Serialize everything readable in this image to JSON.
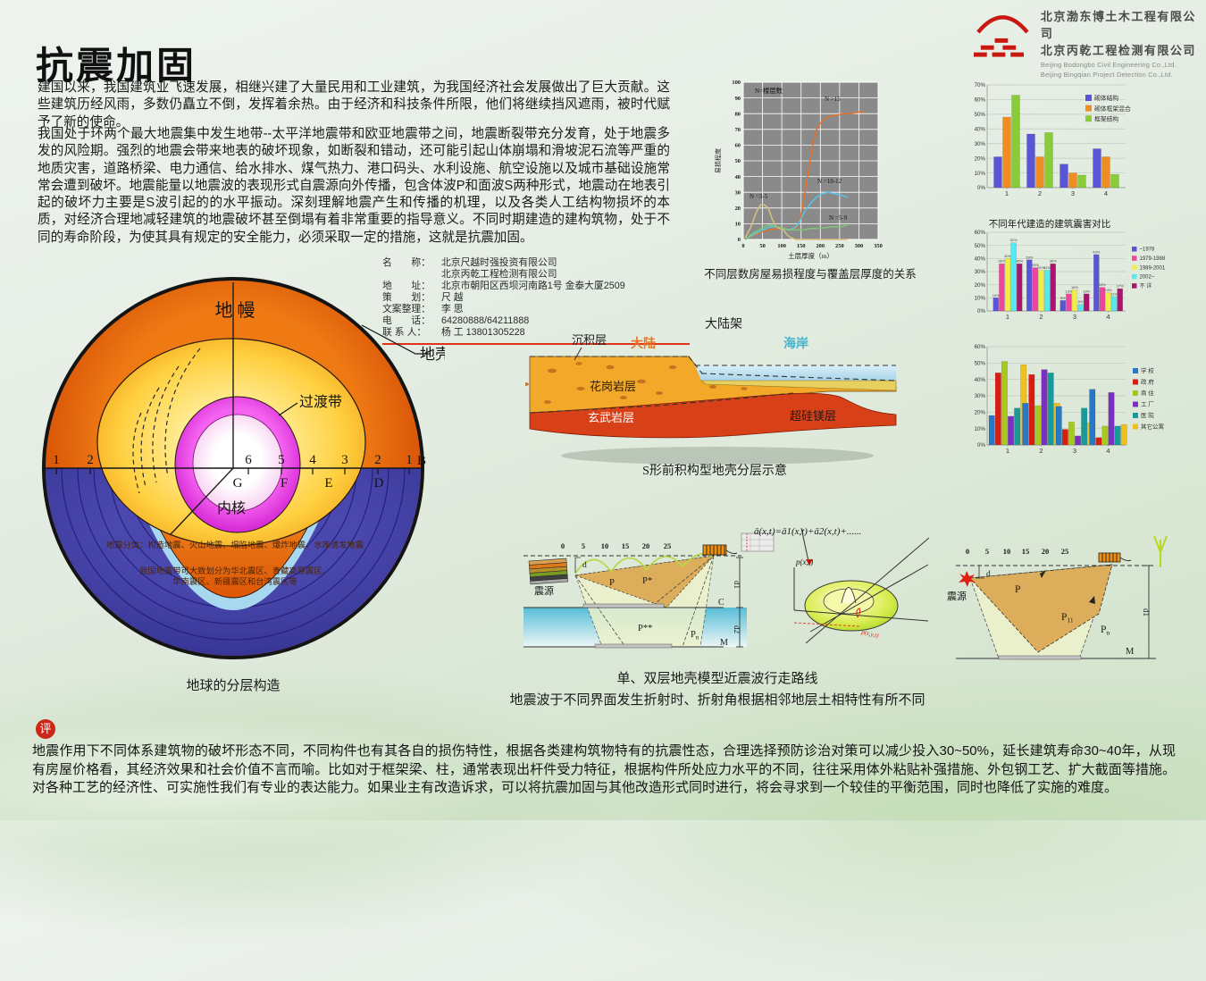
{
  "page": {
    "title": "抗震加固",
    "para1": "建国以来，我国建筑业飞速发展，相继兴建了大量民用和工业建筑，为我国经济社会发展做出了巨大贡献。这些建筑历经风雨，多数仍矗立不倒，发挥着余热。由于经济和科技条件所限，他们将继续挡风遮雨，被时代赋予了新的使命。",
    "para2": "我国处于环两个最大地震集中发生地带--太平洋地震带和欧亚地震带之间，地震断裂带充分发育，处于地震多发的风险期。强烈的地震会带来地表的破坏现象，如断裂和错动，还可能引起山体崩塌和滑坡泥石流等严重的地质灾害，道路桥梁、电力通信、给水排水、煤气热力、港口码头、水利设施、航空设施以及城市基础设施常常会遭到破坏。地震能量以地震波的表现形式自震源向外传播，包含体波P和面波S两种形式，地震动在地表引起的破坏力主要是S波引起的的水平振动。深刻理解地震产生和传播的机理，以及各类人工结构物损坏的本质，对经济合理地减轻建筑的地震破坏甚至倒塌有着非常重要的指导意义。不同时期建造的建构筑物，处于不同的寿命阶段，为使其具有规定的安全能力，必须采取一定的措施，这就是抗震加固。",
    "review_stamp": "评",
    "review_para": "地震作用下不同体系建筑物的破坏形态不同，不同构件也有其各自的损伤特性，根据各类建构筑物特有的抗震性态，合理选择预防诊治对策可以减少投入30~50%，延长建筑寿命30~40年，从现有房屋价格看，其经济效果和社会价值不言而喻。比如对于框架梁、柱，通常表现出杆件受力特征，根据构件所处应力水平的不同，往往采用体外粘贴补强措施、外包钢工艺、扩大截面等措施。对各种工艺的经济性、可实施性我们有专业的表达能力。如果业主有改造诉求，可以将抗震加固与其他改造形式同时进行，将会寻求到一个较佳的平衡范围，同时也降低了实施的难度。"
  },
  "logos": {
    "cn1": "北京渤东博土木工程有限公司",
    "cn2": "北京丙乾工程检测有限公司",
    "en1": "Beijing Bodongbo Civil Engineering Co.,Ltd.",
    "en2": "Beijing Bingqian Project Detection Co.,Ltd.",
    "brand_color": "#c81810"
  },
  "info_block": {
    "rows": [
      {
        "label": "名　　称：",
        "value": "北京尺越时强投资有限公司"
      },
      {
        "label": "",
        "value": "北京丙乾工程检测有限公司"
      },
      {
        "label": "地　　址：",
        "value": "北京市朝阳区西坝河南路1号 金泰大厦2509"
      },
      {
        "label": "策　　划：",
        "value": "尺 越"
      },
      {
        "label": "文案整理：",
        "value": "李 思"
      },
      {
        "label": "电　　话：",
        "value": "64280888/64211888"
      },
      {
        "label": "联 系 人：",
        "value": "杨 工 13801305228"
      }
    ]
  },
  "earth": {
    "mantle": "地 幔",
    "crust": "地壳",
    "transition": "过渡带",
    "core": "内核",
    "numbers": [
      "1",
      "2",
      "6",
      "5",
      "4",
      "3",
      "2",
      "1",
      "B"
    ],
    "letters": [
      "G",
      "F",
      "E",
      "D"
    ],
    "note1": "地震分类：构造地震、火山地震、塌陷地震、爆炸地震、水库诱发地震",
    "note2": "我国地震带可大致划分为华北震区、青藏高原震区、",
    "note3": "华南震区、新疆震区和台湾震区等",
    "caption": "地球的分层构造"
  },
  "shelf": {
    "shelf_label": "大陆架",
    "sediment": "沉积层",
    "continent": "大陆",
    "coast": "海岸",
    "granite": "花岗岩层",
    "basalt": "玄武岩层",
    "sima": "超硅镁层",
    "caption": "S形前积构型地壳分层示意",
    "continent_color": "#e87828",
    "coast_color": "#48b4cc"
  },
  "waves": {
    "scale": [
      "0",
      "5",
      "10",
      "15",
      "20",
      "25"
    ],
    "formula": "ā(x,t)=ā1(x,t)+ā2(x,t)+......",
    "source": "震源",
    "left": {
      "d": "d",
      "p": "P",
      "p_star": "P*",
      "p_star2": "P**",
      "pn_base": "P",
      "pn_sub": "n",
      "c": "C",
      "m": "M",
      "d1": "d1",
      "d2": "d2"
    },
    "surface": {
      "axis": "p(x,t)",
      "point": "p(x,y,t)"
    },
    "right": {
      "d": "d",
      "p": "P",
      "p11_base": "P",
      "p11_sub": "11",
      "pn_base": "P",
      "pn_sub": "n",
      "m": "M",
      "d1": "d1"
    },
    "caption1": "单、双层地壳模型近震波行走路线",
    "caption2": "地震波于不同界面发生折射时、折射角根据相邻地层土相特性有所不同"
  },
  "chart_data": [
    {
      "type": "line",
      "title": "不同层数房屋易损程度与覆盖层厚度的关系",
      "xlabel": "土层厚度（m）",
      "ylabel": "易损程度",
      "annotation": "N=楼层数",
      "xlim": [
        0,
        350
      ],
      "ylim": [
        0,
        100
      ],
      "x_ticks": [
        0,
        50,
        100,
        150,
        200,
        250,
        300,
        350
      ],
      "y_ticks": [
        0,
        10,
        20,
        30,
        40,
        50,
        60,
        70,
        80,
        90,
        100
      ],
      "plot_bg": "#8a8a8a",
      "grid_color": "#ffffff",
      "series": [
        {
          "name": "N >15",
          "color": "#e4722a",
          "points": [
            [
              5,
              0
            ],
            [
              30,
              3
            ],
            [
              50,
              5
            ],
            [
              70,
              6
            ],
            [
              90,
              7
            ],
            [
              110,
              6
            ],
            [
              130,
              6
            ],
            [
              140,
              8
            ],
            [
              150,
              15
            ],
            [
              160,
              30
            ],
            [
              170,
              45
            ],
            [
              180,
              60
            ],
            [
              190,
              70
            ],
            [
              200,
              74
            ],
            [
              220,
              78
            ],
            [
              240,
              79
            ],
            [
              260,
              80
            ],
            [
              280,
              80
            ],
            [
              300,
              81
            ],
            [
              315,
              81
            ]
          ]
        },
        {
          "name": "N =10-12",
          "color": "#58c6e6",
          "points": [
            [
              5,
              0
            ],
            [
              25,
              3
            ],
            [
              50,
              6
            ],
            [
              70,
              8
            ],
            [
              85,
              8
            ],
            [
              100,
              7
            ],
            [
              115,
              6
            ],
            [
              130,
              7
            ],
            [
              140,
              9
            ],
            [
              150,
              13
            ],
            [
              160,
              18
            ],
            [
              175,
              23
            ],
            [
              190,
              27
            ],
            [
              205,
              29
            ],
            [
              220,
              30
            ],
            [
              240,
              29
            ],
            [
              255,
              28
            ],
            [
              270,
              27
            ]
          ]
        },
        {
          "name": "N =3-5",
          "color": "#d8c080",
          "points": [
            [
              5,
              1
            ],
            [
              20,
              8
            ],
            [
              35,
              18
            ],
            [
              45,
              22
            ],
            [
              55,
              22
            ],
            [
              65,
              20
            ],
            [
              75,
              13
            ],
            [
              85,
              8
            ],
            [
              95,
              7
            ],
            [
              105,
              6
            ],
            [
              110,
              4
            ],
            [
              118,
              2
            ],
            [
              125,
              1
            ],
            [
              135,
              0
            ],
            [
              200,
              0
            ],
            [
              270,
              0
            ]
          ]
        },
        {
          "name": "N =5-9",
          "color": "#7dc677",
          "points": [
            [
              5,
              0
            ],
            [
              20,
              3
            ],
            [
              40,
              6
            ],
            [
              55,
              8
            ],
            [
              65,
              9
            ],
            [
              75,
              9
            ],
            [
              90,
              8
            ],
            [
              105,
              7
            ],
            [
              120,
              6
            ],
            [
              140,
              6
            ],
            [
              155,
              6
            ],
            [
              175,
              7
            ],
            [
              200,
              7
            ],
            [
              225,
              8
            ],
            [
              250,
              8
            ],
            [
              270,
              9
            ]
          ]
        }
      ]
    },
    {
      "type": "bar",
      "title": "",
      "categories": [
        "1",
        "2",
        "3",
        "4"
      ],
      "ylim": [
        0,
        70
      ],
      "y_ticks": [
        "0%",
        "10%",
        "20%",
        "30%",
        "40%",
        "50%",
        "60%",
        "70%"
      ],
      "show_value_labels": false,
      "series": [
        {
          "name": "砌体结构",
          "color": "#5a55d6",
          "values": [
            21,
            36.5,
            16,
            26.5
          ]
        },
        {
          "name": "砌体框架混合",
          "color": "#f08d20",
          "values": [
            48,
            21,
            10,
            21
          ]
        },
        {
          "name": "框架结构",
          "color": "#88cc38",
          "values": [
            63,
            37.5,
            8.5,
            9
          ]
        }
      ]
    },
    {
      "type": "bar",
      "title": "不同年代建造的建筑震害对比",
      "categories": [
        "1",
        "2",
        "3",
        "4"
      ],
      "ylim": [
        0,
        60
      ],
      "y_ticks": [
        "0%",
        "10%",
        "20%",
        "30%",
        "40%",
        "50%",
        "60%"
      ],
      "show_value_labels": true,
      "series": [
        {
          "name": "~1978",
          "color": "#5a55d6",
          "values": [
            10,
            39,
            8,
            43
          ]
        },
        {
          "name": "1979-1988",
          "color": "#f0459e",
          "values": [
            36,
            33,
            13,
            18
          ]
        },
        {
          "name": "1989-2001",
          "color": "#f0ee48",
          "values": [
            40,
            31,
            16,
            14
          ]
        },
        {
          "name": "2002~",
          "color": "#58e8f0",
          "values": [
            52,
            31,
            5,
            11
          ]
        },
        {
          "name": "不 详",
          "color": "#a8156e",
          "values": [
            36,
            36,
            13,
            17
          ]
        }
      ]
    },
    {
      "type": "bar",
      "title": "",
      "categories": [
        "1",
        "2",
        "3",
        "4"
      ],
      "ylim": [
        0,
        60
      ],
      "y_ticks": [
        "0%",
        "10%",
        "20%",
        "30%",
        "40%",
        "50%",
        "60%"
      ],
      "show_value_labels": false,
      "series": [
        {
          "name": "学 校",
          "color": "#2878c8",
          "values": [
            18,
            25.5,
            23.5,
            34
          ]
        },
        {
          "name": "政 府",
          "color": "#d81e10",
          "values": [
            44,
            43,
            9.5,
            4.5
          ]
        },
        {
          "name": "商 住",
          "color": "#a8c820",
          "values": [
            51,
            24,
            14,
            11.5
          ]
        },
        {
          "name": "工 厂",
          "color": "#7a2fc0",
          "values": [
            17.5,
            46,
            5.5,
            32
          ]
        },
        {
          "name": "医 院",
          "color": "#189a9a",
          "values": [
            22.5,
            44,
            22.5,
            11.5
          ]
        },
        {
          "name": "其它公寓",
          "color": "#f0c020",
          "values": [
            49,
            25.5,
            13.5,
            12.5
          ]
        }
      ]
    }
  ]
}
